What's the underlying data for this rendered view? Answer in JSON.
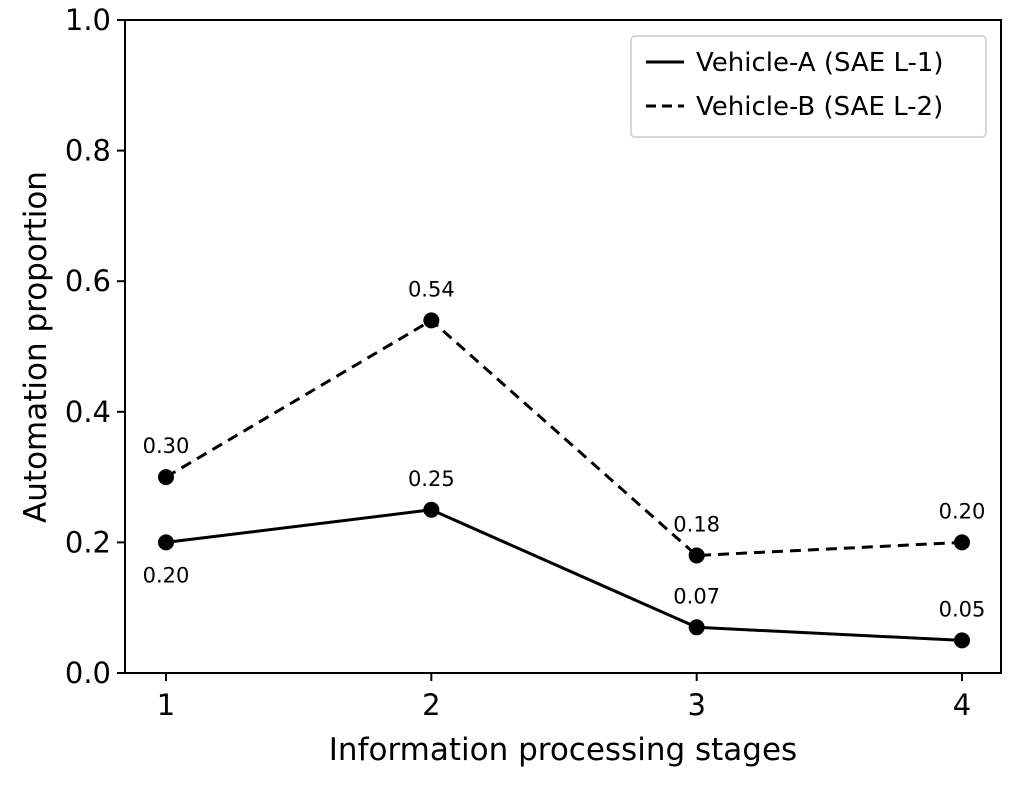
{
  "chart_data": {
    "type": "line",
    "title": "",
    "xlabel": "Information processing stages",
    "ylabel": "Automation proportion",
    "x": [
      1,
      2,
      3,
      4
    ],
    "x_tick_labels": [
      "1",
      "2",
      "3",
      "4"
    ],
    "y_tick_labels": [
      "0.0",
      "0.2",
      "0.4",
      "0.6",
      "0.8",
      "1.0"
    ],
    "ylim": [
      0,
      1
    ],
    "grid": false,
    "legend_position": "top-right",
    "series": [
      {
        "name": "Vehicle-A (SAE L-1)",
        "line_style": "solid",
        "color": "#000000",
        "values": [
          0.2,
          0.25,
          0.07,
          0.05
        ],
        "labels": [
          "0.20",
          "0.25",
          "0.07",
          "0.05"
        ],
        "label_positions": [
          "below",
          "above",
          "above",
          "above"
        ]
      },
      {
        "name": "Vehicle-B (SAE L-2)",
        "line_style": "dashed",
        "color": "#000000",
        "values": [
          0.3,
          0.54,
          0.18,
          0.2
        ],
        "labels": [
          "0.30",
          "0.54",
          "0.18",
          "0.20"
        ],
        "label_positions": [
          "above",
          "above",
          "above",
          "above"
        ]
      }
    ]
  }
}
